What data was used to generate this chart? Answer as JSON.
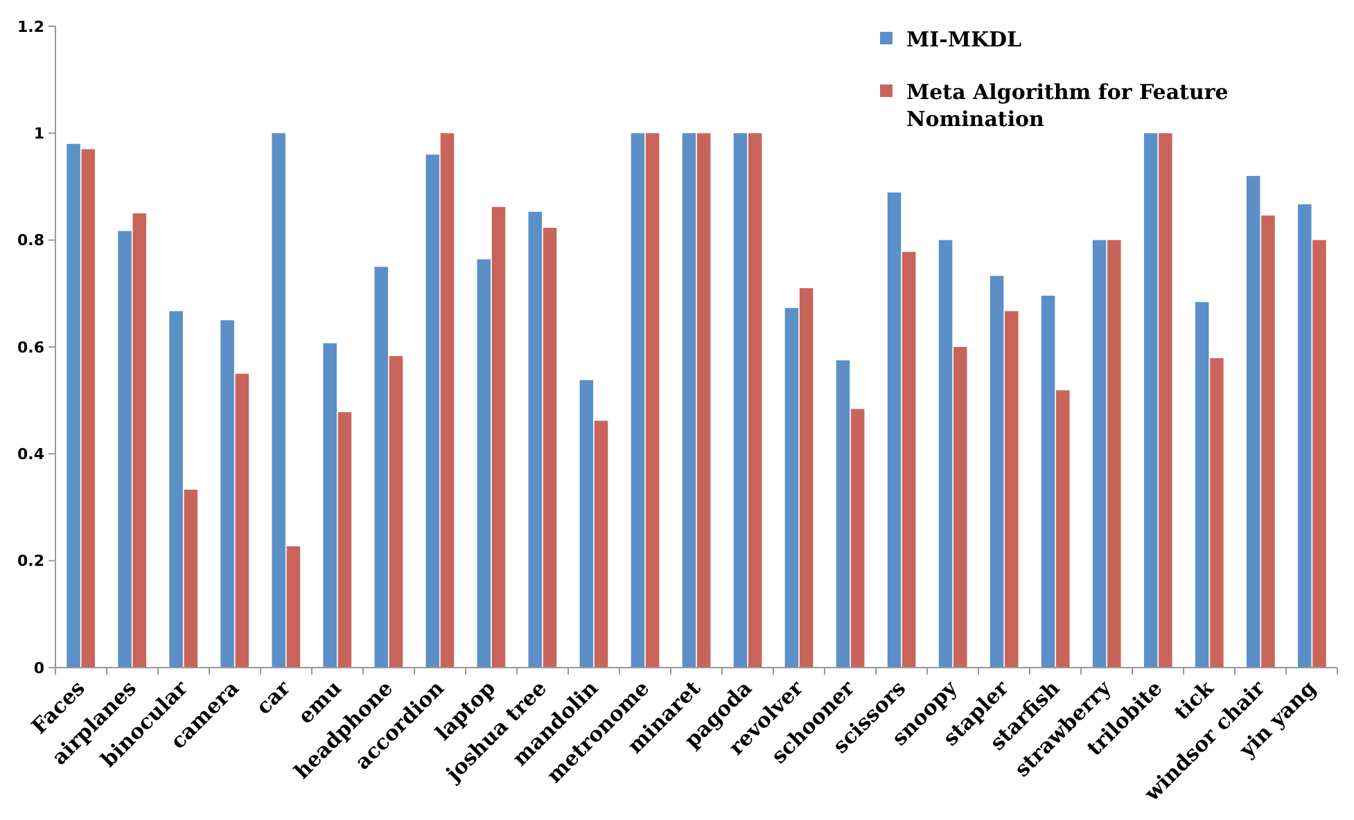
{
  "chart_data": {
    "type": "bar",
    "categories": [
      "Faces",
      "airplanes",
      "binocular",
      "camera",
      "car",
      "emu",
      "headphone",
      "accordion",
      "laptop",
      "joshua tree",
      "mandolin",
      "metronome",
      "minaret",
      "pagoda",
      "revolver",
      "schooner",
      "scissors",
      "snoopy",
      "stapler",
      "starfish",
      "strawberry",
      "trilobite",
      "tick",
      "windsor chair",
      "yin yang"
    ],
    "series": [
      {
        "name": "MI-MKDL",
        "color": "#5b8fc7",
        "values": [
          0.98,
          0.817,
          0.667,
          0.65,
          1,
          0.607,
          0.75,
          0.96,
          0.764,
          0.853,
          0.538,
          1,
          1,
          1,
          0.673,
          0.575,
          0.889,
          0.8,
          0.733,
          0.696,
          0.8,
          1,
          0.684,
          0.92,
          0.867
        ]
      },
      {
        "name": "Meta Algorithm for Feature Nomination",
        "color": "#c9645b",
        "values": [
          0.97,
          0.85,
          0.333,
          0.55,
          0.227,
          0.478,
          0.583,
          1,
          0.862,
          0.823,
          0.462,
          1,
          1,
          1,
          0.71,
          0.484,
          0.778,
          0.6,
          0.667,
          0.519,
          0.8,
          1,
          0.579,
          0.846,
          0.8
        ]
      }
    ],
    "ylim": [
      0,
      1.2
    ],
    "yticks": [
      0,
      0.2,
      0.4,
      0.6,
      0.8,
      1,
      1.2
    ],
    "grid": false,
    "legend": "top right"
  }
}
